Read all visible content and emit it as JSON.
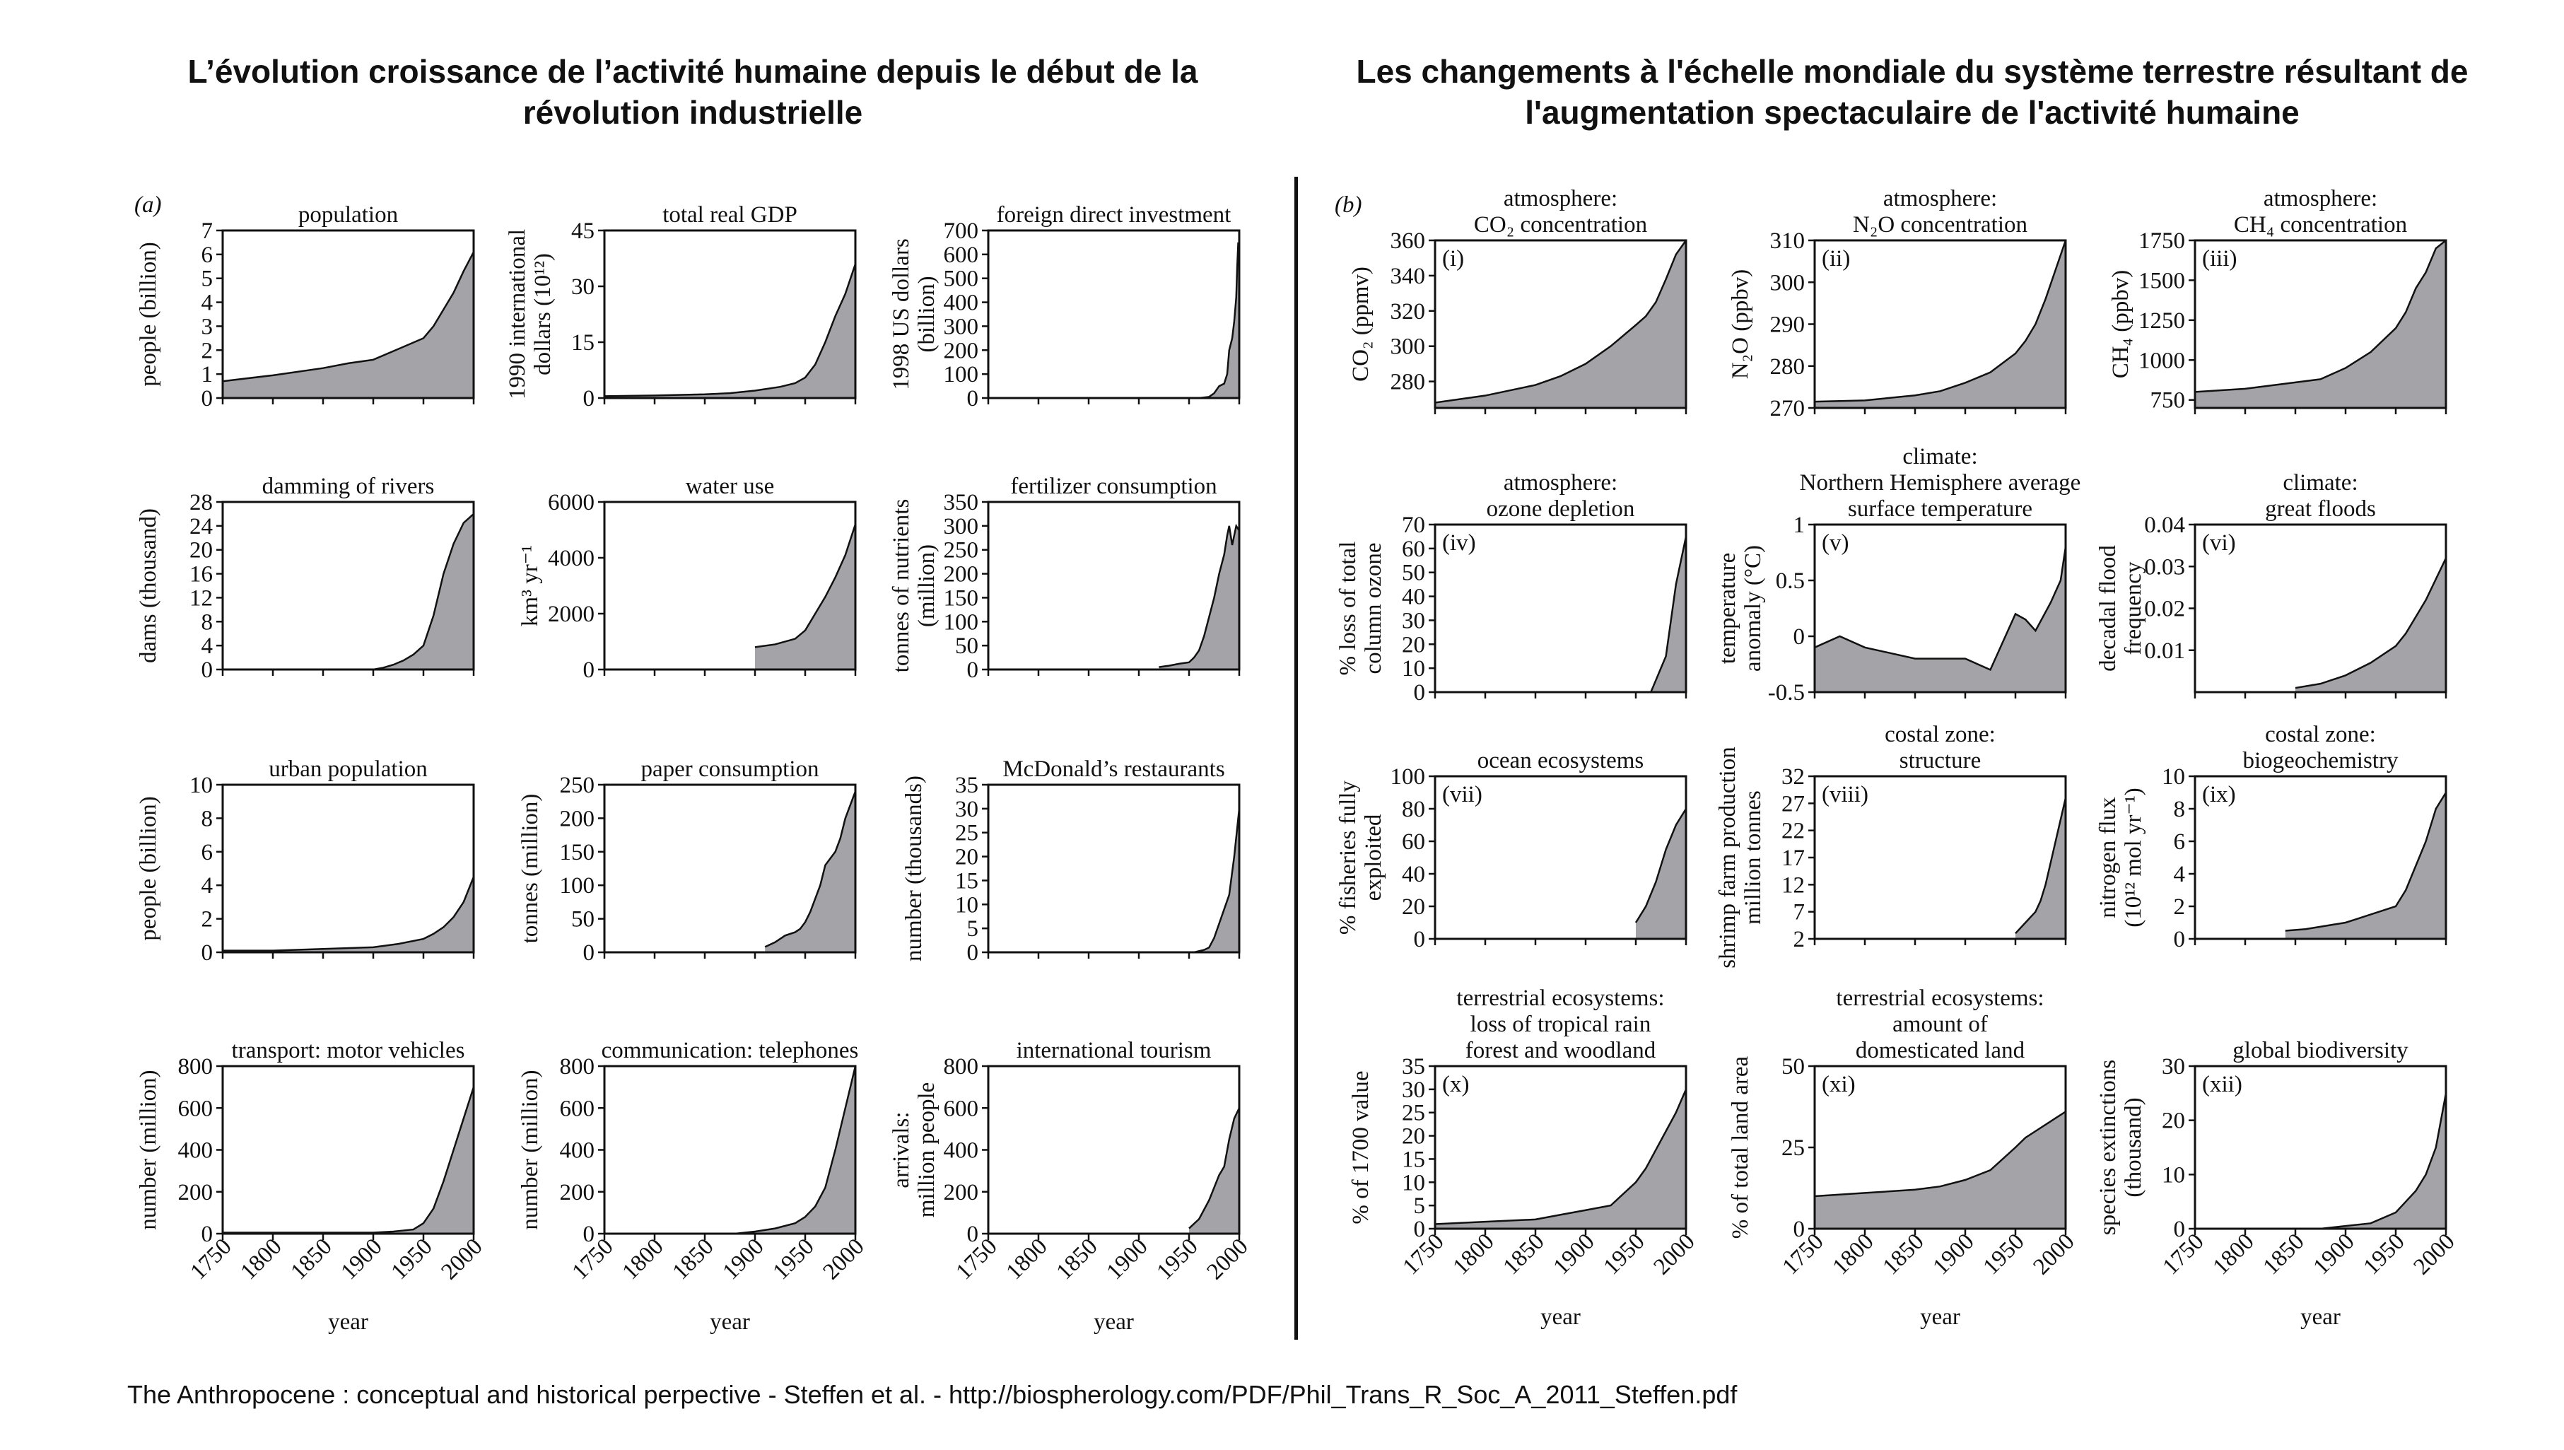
{
  "heading_left": "L’évolution croissance de l’activité humaine depuis le début de la révolution industrielle",
  "heading_right": "Les changements à l'échelle mondiale du système terrestre résultant de l'augmentation spectaculaire de l'activité humaine",
  "citation": "The Anthropocene : conceptual and historical perpective - Steffen et al. - http://biospherology.com/PDF/Phil_Trans_R_Soc_A_2011_Steffen.pdf",
  "colors": {
    "fill": "#a4a4a8",
    "line": "#111111"
  },
  "chart_data": [
    {
      "type": "area",
      "group": "(a)",
      "title": [
        "population"
      ],
      "ylabel": [
        "people (billion)"
      ],
      "ylim": [
        0,
        7
      ],
      "yticks": [
        0,
        1,
        2,
        3,
        4,
        5,
        6,
        7
      ],
      "xlim": [
        1750,
        2000
      ],
      "x": [
        1750,
        1800,
        1850,
        1875,
        1900,
        1925,
        1950,
        1960,
        1970,
        1980,
        1990,
        2000
      ],
      "y": [
        0.7,
        0.95,
        1.25,
        1.45,
        1.6,
        2.05,
        2.5,
        3.0,
        3.7,
        4.4,
        5.3,
        6.1
      ]
    },
    {
      "type": "area",
      "title": [
        "total real GDP"
      ],
      "ylabel": [
        "1990 international",
        "dollars (10¹²)"
      ],
      "ylim": [
        0,
        45
      ],
      "yticks": [
        0,
        15,
        30,
        45
      ],
      "xlim": [
        1750,
        2000
      ],
      "x": [
        1750,
        1800,
        1850,
        1875,
        1900,
        1925,
        1940,
        1950,
        1960,
        1970,
        1980,
        1990,
        2000
      ],
      "y": [
        0.5,
        0.7,
        1,
        1.3,
        2,
        3,
        4,
        5.5,
        9,
        15,
        22,
        28,
        36
      ]
    },
    {
      "type": "area",
      "title": [
        "foreign direct investment"
      ],
      "ylabel": [
        "1998 US dollars",
        "(billion)"
      ],
      "ylim": [
        0,
        700
      ],
      "yticks": [
        0,
        100,
        200,
        300,
        400,
        500,
        600,
        700
      ],
      "xlim": [
        1750,
        2000
      ],
      "x": [
        1960,
        1970,
        1975,
        1980,
        1985,
        1988,
        1990,
        1993,
        1995,
        1997,
        1998,
        1999,
        2000
      ],
      "y": [
        0,
        5,
        20,
        50,
        60,
        100,
        200,
        250,
        320,
        420,
        550,
        650,
        600
      ]
    },
    {
      "type": "area",
      "title": [
        "damming of rivers"
      ],
      "ylabel": [
        "dams (thousand)"
      ],
      "ylim": [
        0,
        28
      ],
      "yticks": [
        0,
        4,
        8,
        12,
        16,
        20,
        24,
        28
      ],
      "xlim": [
        1750,
        2000
      ],
      "x": [
        1900,
        1910,
        1920,
        1930,
        1940,
        1950,
        1960,
        1970,
        1980,
        1990,
        2000
      ],
      "y": [
        0,
        0.3,
        0.8,
        1.5,
        2.5,
        4,
        9,
        16,
        21,
        24.5,
        26
      ]
    },
    {
      "type": "area",
      "title": [
        "water use"
      ],
      "ylabel": [
        "km³ yr⁻¹"
      ],
      "ylim": [
        0,
        6000
      ],
      "yticks": [
        0,
        2000,
        4000,
        6000
      ],
      "xlim": [
        1750,
        2000
      ],
      "x": [
        1900,
        1920,
        1940,
        1950,
        1960,
        1970,
        1980,
        1990,
        2000
      ],
      "y": [
        800,
        900,
        1100,
        1400,
        2000,
        2600,
        3300,
        4100,
        5200
      ]
    },
    {
      "type": "area",
      "title": [
        "fertilizer consumption"
      ],
      "ylabel": [
        "tonnes of  nutrients",
        "(million)"
      ],
      "ylim": [
        0,
        350
      ],
      "yticks": [
        0,
        50,
        100,
        150,
        200,
        250,
        300,
        350
      ],
      "xlim": [
        1750,
        2000
      ],
      "x": [
        1920,
        1930,
        1940,
        1950,
        1955,
        1960,
        1965,
        1970,
        1975,
        1980,
        1985,
        1988,
        1990,
        1993,
        1995,
        1997,
        2000
      ],
      "y": [
        5,
        8,
        12,
        15,
        25,
        40,
        70,
        110,
        150,
        200,
        240,
        280,
        300,
        260,
        280,
        300,
        290
      ]
    },
    {
      "type": "area",
      "title": [
        "urban population"
      ],
      "ylabel": [
        "people (billion)"
      ],
      "ylim": [
        0,
        10
      ],
      "yticks": [
        0,
        2,
        4,
        6,
        8,
        10
      ],
      "xlim": [
        1750,
        2000
      ],
      "x": [
        1750,
        1800,
        1850,
        1900,
        1925,
        1950,
        1960,
        1970,
        1980,
        1990,
        2000
      ],
      "y": [
        0.1,
        0.1,
        0.2,
        0.3,
        0.5,
        0.8,
        1.1,
        1.5,
        2.1,
        3.0,
        4.5
      ]
    },
    {
      "type": "area",
      "title": [
        "paper consumption"
      ],
      "ylabel": [
        "tonnes (million)"
      ],
      "ylim": [
        0,
        250
      ],
      "yticks": [
        0,
        50,
        100,
        150,
        200,
        250
      ],
      "xlim": [
        1750,
        2000
      ],
      "x": [
        1910,
        1920,
        1930,
        1940,
        1945,
        1950,
        1955,
        1960,
        1965,
        1970,
        1975,
        1980,
        1985,
        1990,
        1995,
        2000
      ],
      "y": [
        8,
        15,
        25,
        30,
        35,
        45,
        60,
        80,
        100,
        130,
        140,
        150,
        170,
        200,
        220,
        240
      ]
    },
    {
      "type": "area",
      "title": [
        "McDonald’s restaurants"
      ],
      "ylabel": [
        "number (thousands)"
      ],
      "ylim": [
        0,
        35
      ],
      "yticks": [
        0,
        5,
        10,
        15,
        20,
        25,
        30,
        35
      ],
      "xlim": [
        1750,
        2000
      ],
      "x": [
        1955,
        1965,
        1970,
        1975,
        1980,
        1985,
        1990,
        1995,
        2000
      ],
      "y": [
        0,
        0.5,
        1,
        3,
        6,
        9,
        12,
        20,
        30
      ]
    },
    {
      "type": "area",
      "title": [
        "transport: motor vehicles"
      ],
      "ylabel": [
        "number (million)"
      ],
      "ylim": [
        0,
        800
      ],
      "yticks": [
        0,
        200,
        400,
        600,
        800
      ],
      "xlim": [
        1750,
        2000
      ],
      "x": [
        1750,
        1900,
        1920,
        1940,
        1950,
        1960,
        1970,
        1980,
        1990,
        2000
      ],
      "y": [
        5,
        5,
        10,
        20,
        50,
        120,
        250,
        400,
        550,
        700
      ]
    },
    {
      "type": "area",
      "title": [
        "communication: telephones"
      ],
      "ylabel": [
        "number (million)"
      ],
      "ylim": [
        0,
        800
      ],
      "yticks": [
        0,
        200,
        400,
        600,
        800
      ],
      "xlim": [
        1750,
        2000
      ],
      "x": [
        1880,
        1900,
        1920,
        1940,
        1950,
        1960,
        1970,
        1980,
        1990,
        2000
      ],
      "y": [
        0,
        10,
        25,
        50,
        80,
        130,
        220,
        400,
        600,
        800
      ]
    },
    {
      "type": "area",
      "title": [
        "international tourism"
      ],
      "ylabel": [
        "arrivals:",
        "million people"
      ],
      "ylim": [
        0,
        800
      ],
      "yticks": [
        0,
        200,
        400,
        600,
        800
      ],
      "xlim": [
        1750,
        2000
      ],
      "x": [
        1950,
        1960,
        1970,
        1975,
        1980,
        1985,
        1990,
        1995,
        2000
      ],
      "y": [
        25,
        70,
        160,
        220,
        280,
        320,
        450,
        550,
        600
      ]
    },
    {
      "type": "area",
      "group": "(b)",
      "panel": "(i)",
      "title": [
        "atmosphere:",
        "CO₂ concentration"
      ],
      "ylabel": [
        "CO₂ (ppmv)"
      ],
      "ylim": [
        265,
        360
      ],
      "yticks": [
        280,
        300,
        320,
        340,
        360
      ],
      "xlim": [
        1750,
        2000
      ],
      "x": [
        1750,
        1800,
        1850,
        1875,
        1900,
        1925,
        1950,
        1960,
        1970,
        1980,
        1990,
        2000
      ],
      "y": [
        268,
        272,
        278,
        283,
        290,
        300,
        312,
        317,
        325,
        338,
        352,
        360
      ]
    },
    {
      "type": "area",
      "panel": "(ii)",
      "title": [
        "atmosphere:",
        "N₂O concentration"
      ],
      "ylabel": [
        "N₂O (ppbv)"
      ],
      "ylim": [
        270,
        310
      ],
      "yticks": [
        270,
        280,
        290,
        300,
        310
      ],
      "xlim": [
        1750,
        2000
      ],
      "x": [
        1750,
        1800,
        1850,
        1875,
        1900,
        1925,
        1950,
        1960,
        1970,
        1980,
        1990,
        2000
      ],
      "y": [
        271.5,
        271.8,
        273,
        274,
        276,
        278.5,
        283,
        286,
        290,
        296,
        303,
        310
      ]
    },
    {
      "type": "area",
      "panel": "(iii)",
      "title": [
        "atmosphere:",
        "CH₄ concentration"
      ],
      "ylabel": [
        "CH₄ (ppbv)"
      ],
      "ylim": [
        700,
        1750
      ],
      "yticks": [
        750,
        1000,
        1250,
        1500,
        1750
      ],
      "xlim": [
        1750,
        2000
      ],
      "x": [
        1750,
        1800,
        1850,
        1875,
        1900,
        1925,
        1950,
        1960,
        1970,
        1980,
        1990,
        2000
      ],
      "y": [
        800,
        820,
        860,
        880,
        950,
        1050,
        1200,
        1300,
        1450,
        1550,
        1700,
        1750
      ]
    },
    {
      "type": "area",
      "panel": "(iv)",
      "title": [
        "atmosphere:",
        "ozone depletion"
      ],
      "ylabel": [
        "% loss of total",
        "column ozone"
      ],
      "ylim": [
        0,
        70
      ],
      "yticks": [
        0,
        10,
        20,
        30,
        40,
        50,
        60,
        70
      ],
      "xlim": [
        1750,
        2000
      ],
      "x": [
        1955,
        1965,
        1970,
        1975,
        1980,
        1985,
        1990,
        1995,
        2000
      ],
      "y": [
        0,
        0,
        5,
        10,
        15,
        30,
        45,
        55,
        65
      ]
    },
    {
      "type": "area",
      "panel": "(v)",
      "title": [
        "climate:",
        "Northern Hemisphere average",
        "surface temperature"
      ],
      "ylabel": [
        "temperature",
        "anomaly (°C)"
      ],
      "ylim": [
        -0.5,
        1.0
      ],
      "yticks": [
        -0.5,
        0,
        0.5,
        1.0
      ],
      "xlim": [
        1750,
        2000
      ],
      "x": [
        1750,
        1775,
        1800,
        1825,
        1850,
        1875,
        1900,
        1925,
        1950,
        1960,
        1970,
        1985,
        1995,
        2000
      ],
      "y": [
        -0.1,
        0,
        -0.1,
        -0.15,
        -0.2,
        -0.2,
        -0.2,
        -0.3,
        0.2,
        0.15,
        0.05,
        0.3,
        0.5,
        0.8
      ]
    },
    {
      "type": "area",
      "panel": "(vi)",
      "title": [
        "climate:",
        "great floods"
      ],
      "ylabel": [
        "decadal flood",
        "frequency"
      ],
      "ylim": [
        0,
        0.04
      ],
      "yticks": [
        0.01,
        0.02,
        0.03,
        0.04
      ],
      "xlim": [
        1750,
        2000
      ],
      "x": [
        1850,
        1875,
        1900,
        1925,
        1950,
        1960,
        1970,
        1980,
        1990,
        2000
      ],
      "y": [
        0.001,
        0.002,
        0.004,
        0.007,
        0.011,
        0.014,
        0.018,
        0.022,
        0.027,
        0.032
      ]
    },
    {
      "type": "area",
      "panel": "(vii)",
      "title": [
        "ocean ecosystems"
      ],
      "ylabel": [
        "% fisheries fully",
        "exploited"
      ],
      "ylim": [
        0,
        100
      ],
      "yticks": [
        0,
        20,
        40,
        60,
        80,
        100
      ],
      "xlim": [
        1750,
        2000
      ],
      "x": [
        1950,
        1960,
        1970,
        1980,
        1990,
        2000
      ],
      "y": [
        10,
        20,
        35,
        55,
        70,
        80
      ]
    },
    {
      "type": "area",
      "panel": "(viii)",
      "title": [
        "costal zone:",
        "structure"
      ],
      "ylabel": [
        "shrimp farm production",
        "million tonnes"
      ],
      "ylim": [
        2,
        32
      ],
      "yticks": [
        2,
        7,
        12,
        17,
        22,
        27,
        32
      ],
      "xlim": [
        1750,
        2000
      ],
      "x": [
        1950,
        1960,
        1965,
        1970,
        1975,
        1980,
        1985,
        1990,
        1995,
        2000
      ],
      "y": [
        3,
        5,
        6,
        7,
        9,
        12,
        16,
        20,
        24,
        28
      ]
    },
    {
      "type": "area",
      "panel": "(ix)",
      "title": [
        "costal zone:",
        "biogeochemistry"
      ],
      "ylabel": [
        "nitrogen flux",
        "(10¹² mol yr⁻¹)"
      ],
      "ylim": [
        0,
        10
      ],
      "yticks": [
        0,
        2,
        4,
        6,
        8,
        10
      ],
      "xlim": [
        1750,
        2000
      ],
      "x": [
        1840,
        1860,
        1880,
        1900,
        1910,
        1920,
        1930,
        1940,
        1950,
        1960,
        1970,
        1980,
        1990,
        2000
      ],
      "y": [
        0.5,
        0.6,
        0.8,
        1,
        1.2,
        1.4,
        1.6,
        1.8,
        2,
        3,
        4.5,
        6,
        8,
        9
      ]
    },
    {
      "type": "area",
      "panel": "(x)",
      "title": [
        "terrestrial ecosystems:",
        "loss of tropical rain",
        "forest and woodland"
      ],
      "ylabel": [
        "% of 1700 value"
      ],
      "ylim": [
        0,
        35
      ],
      "yticks": [
        0,
        5,
        10,
        15,
        20,
        25,
        30,
        35
      ],
      "xlim": [
        1750,
        2000
      ],
      "x": [
        1750,
        1800,
        1850,
        1875,
        1900,
        1925,
        1950,
        1960,
        1970,
        1980,
        1990,
        2000
      ],
      "y": [
        1,
        1.5,
        2,
        3,
        4,
        5,
        10,
        13,
        17,
        21,
        25,
        30
      ]
    },
    {
      "type": "area",
      "panel": "(xi)",
      "title": [
        "terrestrial ecosystems:",
        "amount of",
        "domesticated land"
      ],
      "ylabel": [
        "% of total land area"
      ],
      "ylim": [
        0,
        50
      ],
      "yticks": [
        0,
        25,
        50
      ],
      "xlim": [
        1750,
        2000
      ],
      "x": [
        1750,
        1800,
        1850,
        1875,
        1900,
        1925,
        1950,
        1960,
        1970,
        1980,
        1990,
        2000
      ],
      "y": [
        10,
        11,
        12,
        13,
        15,
        18,
        25,
        28,
        30,
        32,
        34,
        36
      ]
    },
    {
      "type": "area",
      "panel": "(xii)",
      "title": [
        "global biodiversity"
      ],
      "ylabel": [
        "species extinctions",
        "(thousand)"
      ],
      "ylim": [
        0,
        30
      ],
      "yticks": [
        0,
        10,
        20,
        30
      ],
      "xlim": [
        1750,
        2000
      ],
      "x": [
        1850,
        1875,
        1900,
        1925,
        1950,
        1960,
        1970,
        1980,
        1990,
        2000
      ],
      "y": [
        0,
        0,
        0.5,
        1,
        3,
        5,
        7,
        10,
        15,
        25
      ]
    }
  ],
  "x_axis": {
    "ticks": [
      "1750",
      "1800",
      "1850",
      "1900",
      "1950",
      "2000"
    ],
    "label": "year"
  },
  "group_labels": [
    "(a)",
    "(b)"
  ]
}
